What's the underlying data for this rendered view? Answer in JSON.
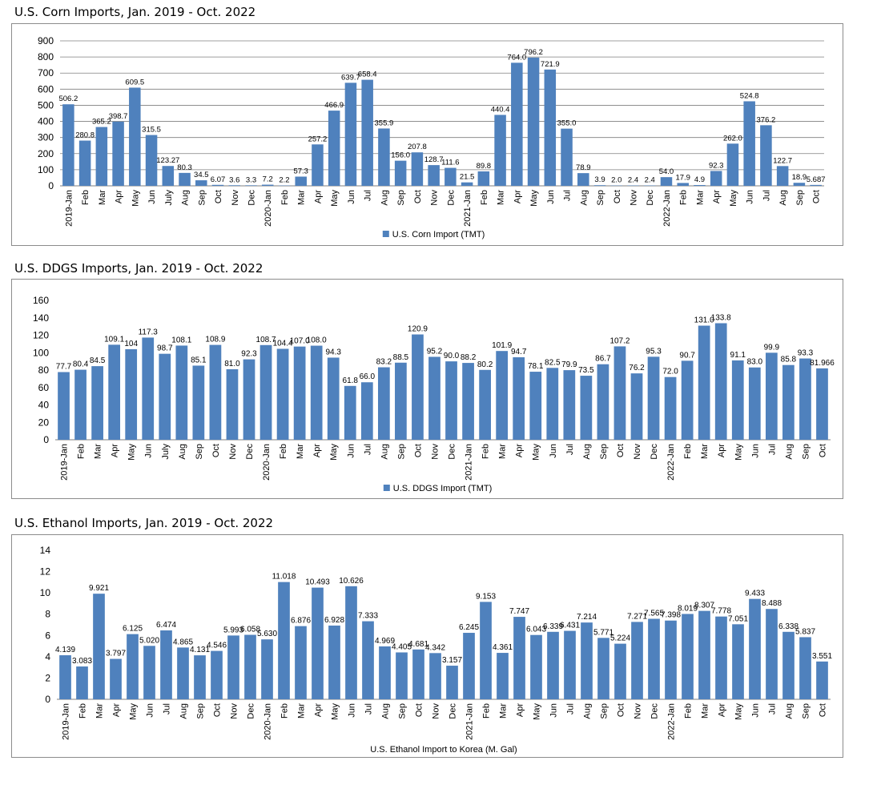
{
  "chart_data": [
    {
      "type": "bar",
      "title": "U.S. Corn Imports, Jan. 2019 - Oct. 2022",
      "categories": [
        "2019-Jan",
        "Feb",
        "Mar",
        "Apr",
        "May",
        "Jun",
        "July",
        "Aug",
        "Sep",
        "Oct",
        "Nov",
        "Dec",
        "2020-Jan",
        "Feb",
        "Mar",
        "Apr",
        "May",
        "Jun",
        "Jul",
        "Aug",
        "Sep",
        "Oct",
        "Nov",
        "Dec",
        "2021-Jan",
        "Feb",
        "Mar",
        "Apr",
        "May",
        "Jun",
        "Jul",
        "Aug",
        "Sep",
        "Oct",
        "Nov",
        "Dec",
        "2022-Jan",
        "Feb",
        "Mar",
        "Apr",
        "May",
        "Jun",
        "Jul",
        "Aug",
        "Sep",
        "Oct"
      ],
      "series": [
        {
          "name": "U.S. Corn Import (TMT)",
          "values": [
            506.2,
            280.8,
            365.2,
            398.7,
            609.5,
            315.5,
            123.27,
            80.3,
            34.5,
            6.07,
            3.6,
            3.3,
            7.2,
            2.2,
            57.3,
            257.2,
            466.9,
            639.7,
            658.4,
            355.9,
            156.0,
            207.8,
            128.7,
            111.6,
            21.5,
            89.8,
            440.4,
            764.0,
            796.2,
            721.9,
            355.0,
            78.9,
            3.9,
            2.0,
            2.4,
            2.4,
            54.0,
            17.9,
            4.9,
            92.3,
            262.0,
            524.8,
            376.2,
            122.7,
            18.9,
            5.687
          ],
          "labels": [
            "506.2",
            "280.8",
            "365.2",
            "398.7",
            "609.5",
            "315.5",
            "123.27",
            "80.3",
            "34.5",
            "6.07",
            "3.6",
            "3.3",
            "7.2",
            "2.2",
            "57.3",
            "257.2",
            "466.9",
            "639.7",
            "658.4",
            "355.9",
            "156.0",
            "207.8",
            "128.7",
            "111.6",
            "21.5",
            "89.8",
            "440.4",
            "764.0",
            "796.2",
            "721.9",
            "355.0",
            "78.9",
            "3.9",
            "2.0",
            "2.4",
            "2.4",
            "54.0",
            "17.9",
            "4.9",
            "92.3",
            "262.0",
            "524.8",
            "376.2",
            "122.7",
            "18.9",
            "5.687"
          ]
        }
      ],
      "yticks": [
        "0",
        "100",
        "200",
        "300",
        "400",
        "500",
        "600",
        "700",
        "800",
        "900"
      ],
      "ylim": [
        0,
        900
      ],
      "grid": true,
      "legend": "bottom",
      "color": "#4f81bd"
    },
    {
      "type": "bar",
      "title": "U.S. DDGS Imports, Jan. 2019 - Oct. 2022",
      "categories": [
        "2019-Jan",
        "Feb",
        "Mar",
        "Apr",
        "May",
        "Jun",
        "July",
        "Aug",
        "Sep",
        "Oct",
        "Nov",
        "Dec",
        "2020-Jan",
        "Feb",
        "Mar",
        "Apr",
        "May",
        "Jun",
        "Jul",
        "Aug",
        "Sep",
        "Oct",
        "Nov",
        "Dec",
        "2021-Jan",
        "Feb",
        "Mar",
        "Apr",
        "May",
        "Jun",
        "Jul",
        "Aug",
        "Sep",
        "Oct",
        "Nov",
        "Dec",
        "2022-Jan",
        "Feb",
        "Mar",
        "Apr",
        "May",
        "Jun",
        "Jul",
        "Aug",
        "Sep",
        "Oct"
      ],
      "series": [
        {
          "name": "U.S. DDGS Import (TMT)",
          "values": [
            77.7,
            80.4,
            84.5,
            109.1,
            104,
            117.3,
            98.7,
            108.1,
            85.1,
            108.9,
            81.0,
            92.3,
            108.7,
            104.4,
            107.0,
            108.0,
            94.3,
            61.8,
            66.0,
            83.2,
            88.5,
            120.9,
            95.2,
            90.0,
            88.2,
            80.2,
            101.9,
            94.7,
            78.1,
            82.5,
            79.9,
            73.5,
            86.7,
            107.2,
            76.2,
            95.3,
            72.0,
            90.7,
            131.0,
            133.8,
            91.1,
            83.0,
            99.9,
            85.8,
            93.3,
            81.966
          ],
          "labels": [
            "77.7",
            "80.4",
            "84.5",
            "109.1",
            "104",
            "117.3",
            "98.7",
            "108.1",
            "85.1",
            "108.9",
            "81.0",
            "92.3",
            "108.7",
            "104.4",
            "107.0",
            "108.0",
            "94.3",
            "61.8",
            "66.0",
            "83.2",
            "88.5",
            "120.9",
            "95.2",
            "90.0",
            "88.2",
            "80.2",
            "101.9",
            "94.7",
            "78.1",
            "82.5",
            "79.9",
            "73.5",
            "86.7",
            "107.2",
            "76.2",
            "95.3",
            "72.0",
            "90.7",
            "131.0",
            "133.8",
            "91.1",
            "83.0",
            "99.9",
            "85.8",
            "93.3",
            "81.966"
          ]
        }
      ],
      "yticks": [
        "0",
        "20",
        "40",
        "60",
        "80",
        "100",
        "120",
        "140",
        "160"
      ],
      "ylim": [
        0,
        160
      ],
      "grid": false,
      "legend": "bottom",
      "color": "#4f81bd"
    },
    {
      "type": "bar",
      "title": "U.S. Ethanol Imports, Jan. 2019 - Oct. 2022",
      "categories": [
        "2019-Jan",
        "Feb",
        "Mar",
        "Apr",
        "May",
        "Jun",
        "Jul",
        "Aug",
        "Sep",
        "Oct",
        "Nov",
        "Dec",
        "2020-Jan",
        "Feb",
        "Mar",
        "Apr",
        "May",
        "Jun",
        "Jul",
        "Aug",
        "Sep",
        "Oct",
        "Nov",
        "Dec",
        "2021-Jan",
        "Feb",
        "Mar",
        "Apr",
        "May",
        "Jun",
        "Jul",
        "Aug",
        "Sep",
        "Oct",
        "Nov",
        "Dec",
        "2022-Jan",
        "Feb",
        "Mar",
        "Apr",
        "May",
        "Jun",
        "Jul",
        "Aug",
        "Sep",
        "Oct"
      ],
      "series": [
        {
          "name": "",
          "values": [
            4.139,
            3.083,
            9.921,
            3.797,
            6.125,
            5.02,
            6.474,
            4.865,
            4.131,
            4.546,
            5.993,
            6.058,
            5.63,
            11.018,
            6.876,
            10.493,
            6.928,
            10.626,
            7.333,
            4.969,
            4.405,
            4.681,
            4.342,
            3.157,
            6.245,
            9.153,
            4.361,
            7.747,
            6.043,
            6.339,
            6.431,
            7.214,
            5.771,
            5.224,
            7.271,
            7.565,
            7.398,
            8.019,
            8.307,
            7.778,
            7.051,
            9.433,
            8.488,
            6.338,
            5.837,
            3.551
          ],
          "labels": [
            "4.139",
            "3.083",
            "9.921",
            "3.797",
            "6.125",
            "5.020",
            "6.474",
            "4.865",
            "4.131",
            "4.546",
            "5.993",
            "6.058",
            "5.630",
            "11.018",
            "6.876",
            "10.493",
            "6.928",
            "10.626",
            "7.333",
            "4.969",
            "4.405",
            "4.681",
            "4.342",
            "3.157",
            "6.245",
            "9.153",
            "4.361",
            "7.747",
            "6.043",
            "6.339",
            "6.431",
            "7.214",
            "5.771",
            "5.224",
            "7.271",
            "7.565",
            "7.398",
            "8.019",
            "8.307",
            "7.778",
            "7.051",
            "9.433",
            "8.488",
            "6.338",
            "5.837",
            "3.551"
          ]
        }
      ],
      "yticks": [
        "0",
        "2",
        "4",
        "6",
        "8",
        "10",
        "12",
        "14"
      ],
      "ylim": [
        0,
        14
      ],
      "xlabel": "U.S. Ethanol Import to Korea (M. Gal)",
      "grid": false,
      "legend": "none",
      "color": "#4f81bd"
    }
  ]
}
